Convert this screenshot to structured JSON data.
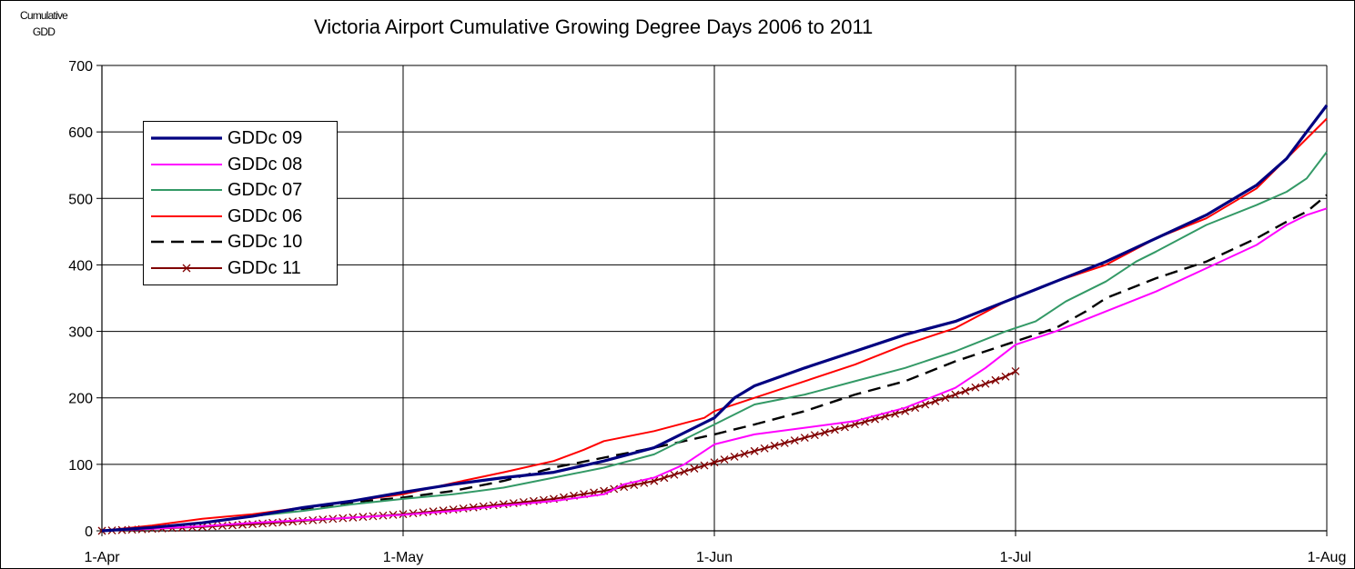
{
  "chart_data": {
    "type": "line",
    "title": "Victoria Airport Cumulative Growing Degree Days 2006 to 2011",
    "ylabel": [
      "Cumulative",
      "GDD"
    ],
    "ylim": [
      0,
      700
    ],
    "yticks": [
      0,
      100,
      200,
      300,
      400,
      500,
      600,
      700
    ],
    "xlim": [
      0,
      122
    ],
    "xticks": [
      {
        "day": 0,
        "label": "1-Apr"
      },
      {
        "day": 30,
        "label": "1-May"
      },
      {
        "day": 61,
        "label": "1-Jun"
      },
      {
        "day": 91,
        "label": "1-Jul"
      },
      {
        "day": 122,
        "label": "1-Aug"
      }
    ],
    "grid": true,
    "legend_position": "top-left",
    "series": [
      {
        "name": "GDDc 09",
        "color": "#000080",
        "style": "solid-thick",
        "points": [
          [
            0,
            0
          ],
          [
            5,
            5
          ],
          [
            10,
            12
          ],
          [
            15,
            22
          ],
          [
            20,
            35
          ],
          [
            25,
            45
          ],
          [
            30,
            58
          ],
          [
            35,
            70
          ],
          [
            40,
            80
          ],
          [
            45,
            88
          ],
          [
            50,
            105
          ],
          [
            55,
            125
          ],
          [
            61,
            170
          ],
          [
            63,
            200
          ],
          [
            65,
            218
          ],
          [
            70,
            245
          ],
          [
            75,
            270
          ],
          [
            80,
            295
          ],
          [
            85,
            315
          ],
          [
            90,
            345
          ],
          [
            95,
            375
          ],
          [
            100,
            405
          ],
          [
            105,
            440
          ],
          [
            110,
            475
          ],
          [
            115,
            520
          ],
          [
            118,
            560
          ],
          [
            120,
            600
          ],
          [
            122,
            640
          ]
        ]
      },
      {
        "name": "GDDc 08",
        "color": "#ff00ff",
        "style": "solid",
        "points": [
          [
            0,
            0
          ],
          [
            5,
            3
          ],
          [
            10,
            7
          ],
          [
            15,
            12
          ],
          [
            20,
            16
          ],
          [
            25,
            20
          ],
          [
            30,
            24
          ],
          [
            35,
            30
          ],
          [
            40,
            38
          ],
          [
            45,
            45
          ],
          [
            50,
            55
          ],
          [
            52,
            70
          ],
          [
            55,
            80
          ],
          [
            58,
            100
          ],
          [
            61,
            130
          ],
          [
            65,
            145
          ],
          [
            70,
            155
          ],
          [
            75,
            165
          ],
          [
            80,
            185
          ],
          [
            85,
            215
          ],
          [
            88,
            245
          ],
          [
            91,
            280
          ],
          [
            95,
            300
          ],
          [
            100,
            330
          ],
          [
            105,
            360
          ],
          [
            110,
            395
          ],
          [
            115,
            430
          ],
          [
            118,
            460
          ],
          [
            120,
            475
          ],
          [
            122,
            485
          ]
        ]
      },
      {
        "name": "GDDc 07",
        "color": "#339966",
        "style": "solid",
        "points": [
          [
            0,
            0
          ],
          [
            5,
            5
          ],
          [
            10,
            12
          ],
          [
            15,
            22
          ],
          [
            20,
            30
          ],
          [
            25,
            40
          ],
          [
            30,
            48
          ],
          [
            35,
            55
          ],
          [
            40,
            65
          ],
          [
            45,
            80
          ],
          [
            50,
            95
          ],
          [
            55,
            115
          ],
          [
            61,
            160
          ],
          [
            65,
            190
          ],
          [
            70,
            205
          ],
          [
            75,
            225
          ],
          [
            80,
            245
          ],
          [
            85,
            270
          ],
          [
            90,
            300
          ],
          [
            93,
            315
          ],
          [
            96,
            345
          ],
          [
            100,
            375
          ],
          [
            103,
            405
          ],
          [
            105,
            420
          ],
          [
            110,
            460
          ],
          [
            115,
            490
          ],
          [
            118,
            510
          ],
          [
            120,
            530
          ],
          [
            122,
            570
          ]
        ]
      },
      {
        "name": "GDDc 06",
        "color": "#ff0000",
        "style": "solid",
        "points": [
          [
            0,
            0
          ],
          [
            5,
            8
          ],
          [
            10,
            18
          ],
          [
            15,
            25
          ],
          [
            20,
            35
          ],
          [
            25,
            45
          ],
          [
            30,
            55
          ],
          [
            35,
            72
          ],
          [
            40,
            88
          ],
          [
            45,
            105
          ],
          [
            48,
            122
          ],
          [
            50,
            135
          ],
          [
            55,
            150
          ],
          [
            60,
            170
          ],
          [
            61,
            180
          ],
          [
            65,
            200
          ],
          [
            70,
            225
          ],
          [
            75,
            250
          ],
          [
            80,
            280
          ],
          [
            85,
            305
          ],
          [
            90,
            345
          ],
          [
            95,
            375
          ],
          [
            100,
            400
          ],
          [
            105,
            440
          ],
          [
            110,
            470
          ],
          [
            115,
            515
          ],
          [
            118,
            560
          ],
          [
            120,
            590
          ],
          [
            122,
            620
          ]
        ]
      },
      {
        "name": "GDDc 10",
        "color": "#000000",
        "style": "dashed",
        "points": [
          [
            0,
            0
          ],
          [
            5,
            5
          ],
          [
            10,
            12
          ],
          [
            15,
            22
          ],
          [
            20,
            33
          ],
          [
            25,
            43
          ],
          [
            30,
            50
          ],
          [
            35,
            60
          ],
          [
            40,
            75
          ],
          [
            45,
            95
          ],
          [
            50,
            110
          ],
          [
            55,
            125
          ],
          [
            61,
            145
          ],
          [
            65,
            160
          ],
          [
            70,
            180
          ],
          [
            75,
            205
          ],
          [
            80,
            225
          ],
          [
            85,
            255
          ],
          [
            90,
            280
          ],
          [
            95,
            305
          ],
          [
            98,
            330
          ],
          [
            100,
            350
          ],
          [
            105,
            380
          ],
          [
            110,
            405
          ],
          [
            115,
            440
          ],
          [
            118,
            465
          ],
          [
            120,
            480
          ],
          [
            122,
            505
          ]
        ]
      },
      {
        "name": "GDDc 11",
        "color": "#800000",
        "style": "cross",
        "points": [
          [
            0,
            0
          ],
          [
            5,
            3
          ],
          [
            10,
            6
          ],
          [
            15,
            10
          ],
          [
            20,
            15
          ],
          [
            25,
            20
          ],
          [
            30,
            25
          ],
          [
            35,
            32
          ],
          [
            40,
            40
          ],
          [
            45,
            48
          ],
          [
            50,
            60
          ],
          [
            55,
            75
          ],
          [
            61,
            103
          ],
          [
            65,
            120
          ],
          [
            70,
            140
          ],
          [
            75,
            160
          ],
          [
            80,
            180
          ],
          [
            85,
            205
          ],
          [
            90,
            232
          ],
          [
            91,
            240
          ]
        ]
      }
    ]
  }
}
